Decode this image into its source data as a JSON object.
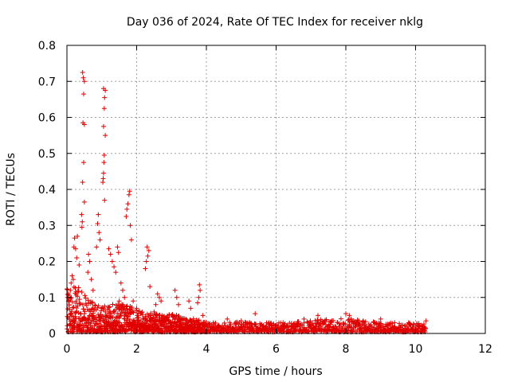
{
  "chart_data": {
    "type": "scatter",
    "title": "Day 036 of 2024, Rate Of TEC Index for receiver nklg",
    "xlabel": "GPS time / hours",
    "ylabel": "ROTI / TECUs",
    "xlim": [
      0,
      12
    ],
    "ylim": [
      0,
      0.8
    ],
    "xticks": [
      0,
      2,
      4,
      6,
      8,
      10,
      12
    ],
    "yticks": [
      0,
      0.1,
      0.2,
      0.3,
      0.4,
      0.5,
      0.6,
      0.7,
      0.8
    ],
    "xtick_labels": [
      "0",
      "2",
      "4",
      "6",
      "8",
      "10",
      "12"
    ],
    "ytick_labels": [
      "0",
      "0.1",
      "0.2",
      "0.3",
      "0.4",
      "0.5",
      "0.6",
      "0.7",
      "0.8"
    ],
    "grid": true,
    "marker": "+",
    "color": "#e00000",
    "series": [
      {
        "name": "ROTI",
        "points": [
          [
            0.45,
            0.725
          ],
          [
            0.47,
            0.71
          ],
          [
            0.5,
            0.7
          ],
          [
            0.48,
            0.665
          ],
          [
            0.46,
            0.585
          ],
          [
            0.5,
            0.58
          ],
          [
            0.48,
            0.475
          ],
          [
            0.45,
            0.42
          ],
          [
            0.5,
            0.365
          ],
          [
            0.42,
            0.33
          ],
          [
            0.44,
            0.31
          ],
          [
            0.43,
            0.295
          ],
          [
            1.05,
            0.68
          ],
          [
            1.1,
            0.675
          ],
          [
            1.08,
            0.655
          ],
          [
            1.07,
            0.625
          ],
          [
            1.05,
            0.575
          ],
          [
            1.1,
            0.55
          ],
          [
            1.07,
            0.495
          ],
          [
            1.06,
            0.475
          ],
          [
            1.05,
            0.445
          ],
          [
            1.04,
            0.43
          ],
          [
            1.03,
            0.42
          ],
          [
            1.08,
            0.37
          ],
          [
            0.9,
            0.33
          ],
          [
            0.88,
            0.305
          ],
          [
            0.92,
            0.28
          ],
          [
            0.95,
            0.26
          ],
          [
            0.85,
            0.24
          ],
          [
            1.8,
            0.395
          ],
          [
            1.78,
            0.385
          ],
          [
            1.75,
            0.36
          ],
          [
            1.72,
            0.345
          ],
          [
            1.7,
            0.325
          ],
          [
            1.82,
            0.3
          ],
          [
            1.85,
            0.26
          ],
          [
            2.3,
            0.24
          ],
          [
            2.35,
            0.23
          ],
          [
            2.32,
            0.215
          ],
          [
            2.28,
            0.2
          ],
          [
            2.38,
            0.13
          ],
          [
            2.25,
            0.18
          ],
          [
            0.2,
            0.24
          ],
          [
            0.25,
            0.235
          ],
          [
            0.28,
            0.21
          ],
          [
            0.3,
            0.27
          ],
          [
            0.22,
            0.265
          ],
          [
            0.35,
            0.19
          ],
          [
            0.15,
            0.16
          ],
          [
            0.18,
            0.15
          ],
          [
            0.12,
            0.14
          ],
          [
            0.1,
            0.12
          ],
          [
            0.05,
            0.11
          ],
          [
            0.02,
            0.1
          ],
          [
            0.62,
            0.22
          ],
          [
            0.65,
            0.2
          ],
          [
            0.6,
            0.17
          ],
          [
            0.7,
            0.15
          ],
          [
            0.75,
            0.12
          ],
          [
            1.2,
            0.235
          ],
          [
            1.25,
            0.22
          ],
          [
            1.3,
            0.2
          ],
          [
            1.35,
            0.185
          ],
          [
            1.4,
            0.17
          ],
          [
            1.45,
            0.24
          ],
          [
            1.48,
            0.225
          ],
          [
            1.55,
            0.14
          ],
          [
            1.6,
            0.12
          ],
          [
            1.65,
            0.1
          ],
          [
            1.5,
            0.09
          ],
          [
            1.9,
            0.09
          ],
          [
            2.0,
            0.07
          ],
          [
            2.6,
            0.11
          ],
          [
            2.65,
            0.1
          ],
          [
            2.7,
            0.09
          ],
          [
            2.55,
            0.08
          ],
          [
            2.5,
            0.06
          ],
          [
            3.1,
            0.12
          ],
          [
            3.15,
            0.1
          ],
          [
            3.2,
            0.08
          ],
          [
            3.5,
            0.09
          ],
          [
            3.55,
            0.07
          ],
          [
            3.8,
            0.135
          ],
          [
            3.82,
            0.12
          ],
          [
            3.78,
            0.1
          ],
          [
            3.75,
            0.085
          ],
          [
            3.9,
            0.05
          ],
          [
            4.2,
            0.03
          ],
          [
            4.6,
            0.04
          ],
          [
            5.0,
            0.035
          ],
          [
            5.4,
            0.055
          ],
          [
            5.8,
            0.03
          ],
          [
            6.2,
            0.03
          ],
          [
            6.8,
            0.04
          ],
          [
            7.2,
            0.05
          ],
          [
            7.6,
            0.035
          ],
          [
            8.0,
            0.055
          ],
          [
            8.1,
            0.05
          ],
          [
            8.5,
            0.035
          ],
          [
            9.0,
            0.04
          ],
          [
            9.4,
            0.03
          ],
          [
            9.8,
            0.03
          ],
          [
            10.3,
            0.035
          ]
        ]
      }
    ],
    "dense_band": {
      "description": "dense cluster of low-value points",
      "x_range": [
        0,
        10.3
      ],
      "y_envelope": [
        [
          0,
          0.12
        ],
        [
          0.3,
          0.13
        ],
        [
          0.6,
          0.09
        ],
        [
          1.0,
          0.07
        ],
        [
          1.5,
          0.09
        ],
        [
          2.0,
          0.06
        ],
        [
          2.5,
          0.05
        ],
        [
          3.0,
          0.05
        ],
        [
          3.5,
          0.04
        ],
        [
          4.0,
          0.03
        ],
        [
          6.0,
          0.025
        ],
        [
          8.0,
          0.04
        ],
        [
          9.0,
          0.025
        ],
        [
          10.3,
          0.025
        ]
      ]
    }
  }
}
